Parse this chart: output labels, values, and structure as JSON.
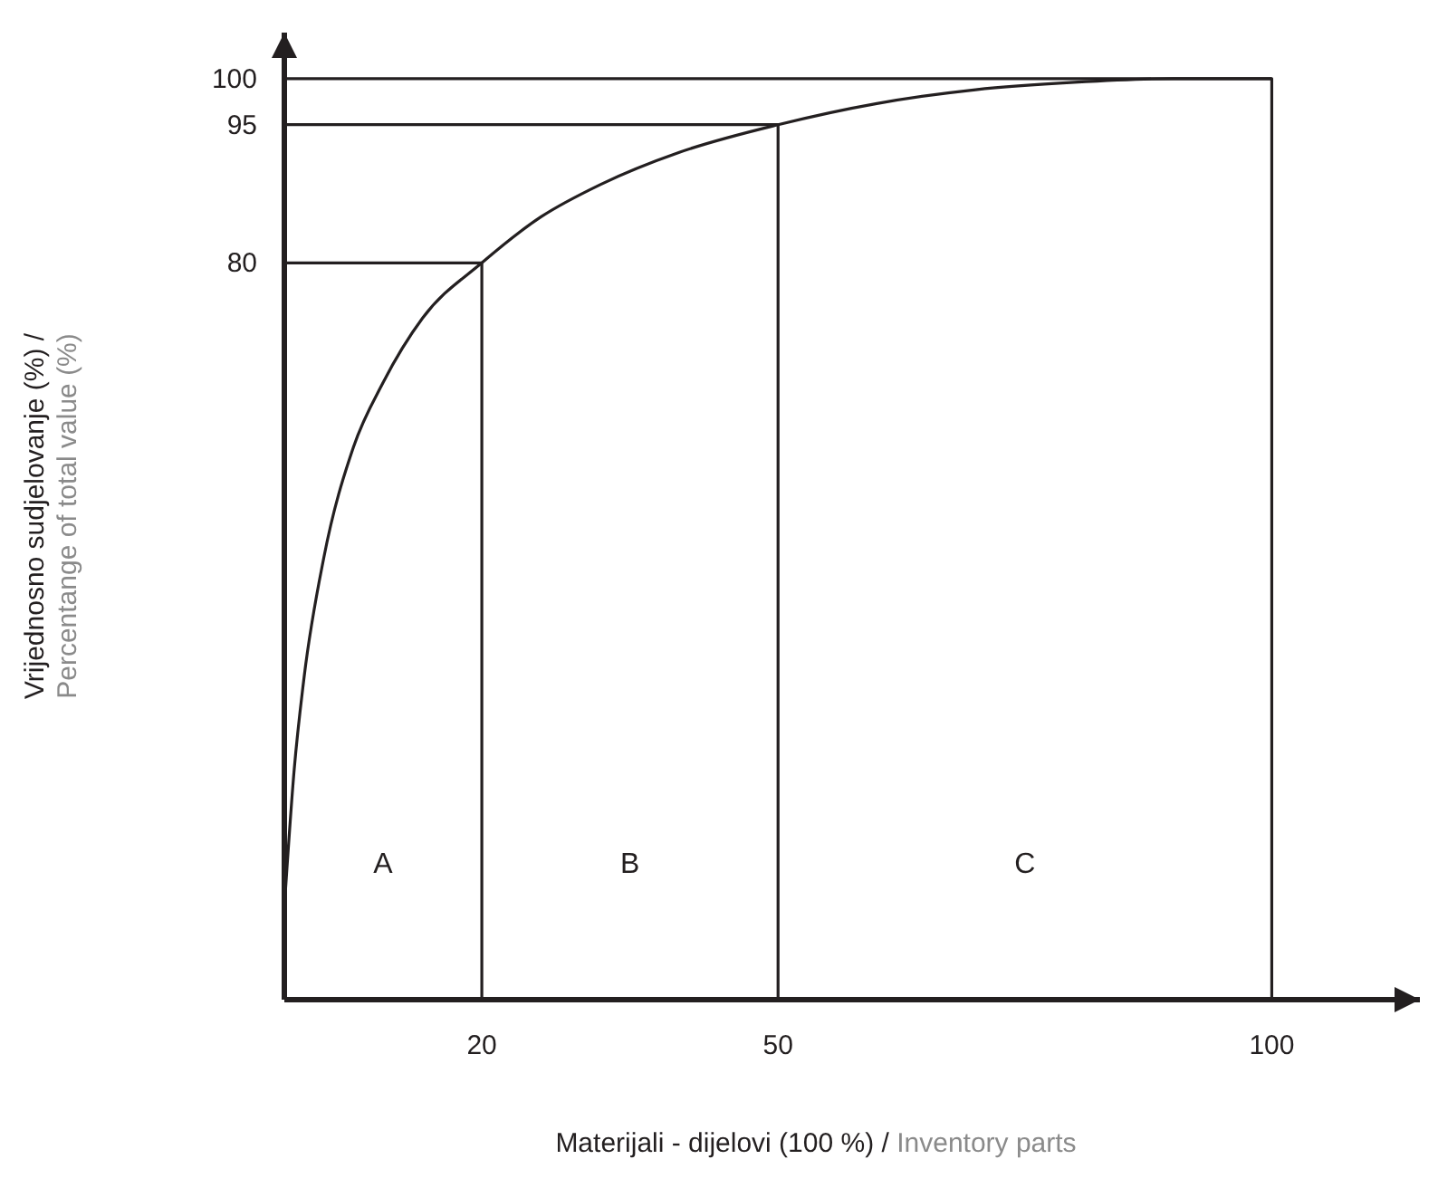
{
  "chart_data": {
    "type": "line",
    "xlabel": "Materijali - dijelovi (100 %) / Inventory parts",
    "ylabel": "Vrijednosno sudjelovanje (%) / Percentange of total value (%)",
    "xlim": [
      0,
      115
    ],
    "ylim": [
      0,
      105
    ],
    "xticks": [
      20,
      50,
      100
    ],
    "yticks": [
      80,
      95,
      100
    ],
    "grid": false,
    "marker": "none",
    "line_style": "solid",
    "series": [
      {
        "color": "#231f20",
        "x": [
          0,
          1,
          2,
          4,
          7,
          10,
          14,
          20,
          26,
          32,
          40,
          50,
          60,
          70,
          80,
          90,
          100
        ],
        "values": [
          10,
          25,
          35,
          48,
          60,
          67,
          74,
          80,
          85,
          88.5,
          92,
          95,
          97.3,
          98.8,
          99.6,
          100,
          100
        ]
      },
      {
        "color": "#231f20",
        "x": [
          0,
          20,
          20
        ],
        "values": [
          80,
          80,
          0
        ]
      },
      {
        "color": "#231f20",
        "x": [
          0,
          50,
          50
        ],
        "values": [
          95,
          95,
          0
        ]
      },
      {
        "color": "#231f20",
        "x": [
          0,
          100,
          100
        ],
        "values": [
          100,
          100,
          0
        ]
      }
    ],
    "annotations": [
      "A",
      "B",
      "C"
    ]
  }
}
